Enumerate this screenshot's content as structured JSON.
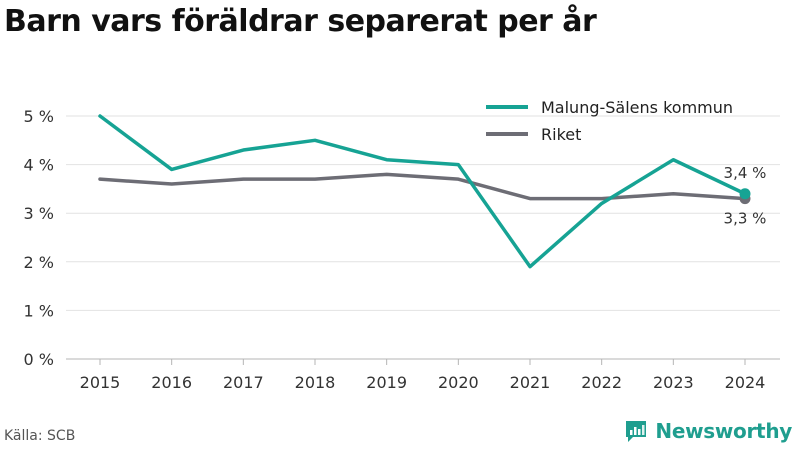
{
  "title": "Barn vars föräldrar separerat per år",
  "source": "Källa: SCB",
  "brand": {
    "name": "Newsworthy",
    "color": "#1f9e8f"
  },
  "chart_data": {
    "type": "line",
    "title": "Barn vars föräldrar separerat per år",
    "xlabel": "",
    "ylabel": "",
    "categories": [
      "2015",
      "2016",
      "2017",
      "2018",
      "2019",
      "2020",
      "2021",
      "2022",
      "2023",
      "2024"
    ],
    "y_ticks": [
      0,
      1,
      2,
      3,
      4,
      5
    ],
    "y_tick_labels": [
      "0 %",
      "1 %",
      "2 %",
      "3 %",
      "4 %",
      "5 %"
    ],
    "ylim": [
      0,
      5.1
    ],
    "grid": "horizontal",
    "legend_position": "top-right",
    "series": [
      {
        "name": "Malung-Sälens kommun",
        "color": "#16a394",
        "values": [
          5.0,
          3.9,
          4.3,
          4.5,
          4.1,
          4.0,
          1.9,
          3.2,
          4.1,
          3.4
        ],
        "end_label": "3,4 %"
      },
      {
        "name": "Riket",
        "color": "#6d6d75",
        "values": [
          3.7,
          3.6,
          3.7,
          3.7,
          3.8,
          3.7,
          3.3,
          3.3,
          3.4,
          3.3
        ],
        "end_label": "3,3 %"
      }
    ]
  }
}
